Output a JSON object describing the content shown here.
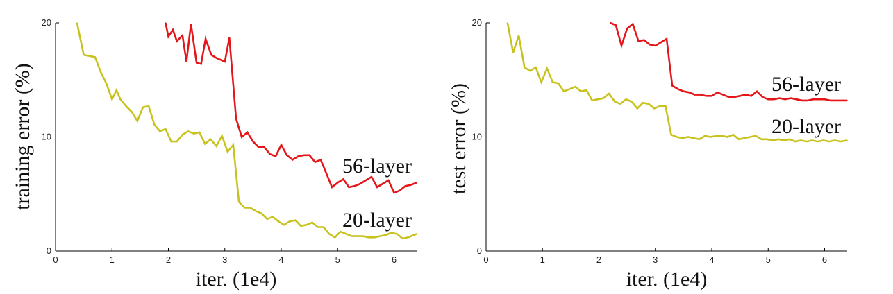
{
  "chart_data": [
    {
      "type": "line",
      "xlabel": "iter. (1e4)",
      "ylabel": "training error (%)",
      "xlim": [
        0,
        6.4
      ],
      "ylim": [
        0,
        20
      ],
      "xticks": [
        0,
        1,
        2,
        3,
        4,
        5,
        6
      ],
      "yticks": [
        0,
        10,
        20
      ],
      "grid": false,
      "series": [
        {
          "name": "56-layer",
          "color": "#e4161a",
          "x": [
            1.95,
            2.0,
            2.08,
            2.15,
            2.25,
            2.32,
            2.4,
            2.5,
            2.58,
            2.66,
            2.76,
            2.86,
            3.0,
            3.08,
            3.2,
            3.3,
            3.4,
            3.5,
            3.6,
            3.7,
            3.8,
            3.9,
            4.0,
            4.1,
            4.2,
            4.3,
            4.4,
            4.5,
            4.6,
            4.7,
            4.8,
            4.9,
            5.0,
            5.1,
            5.2,
            5.3,
            5.4,
            5.5,
            5.6,
            5.7,
            5.8,
            5.9,
            6.0,
            6.1,
            6.2,
            6.3,
            6.4
          ],
          "values": [
            20.0,
            18.8,
            19.4,
            18.4,
            18.9,
            16.6,
            19.9,
            16.5,
            16.4,
            18.6,
            17.2,
            16.9,
            16.6,
            18.7,
            11.6,
            10.0,
            10.4,
            9.6,
            9.1,
            9.1,
            8.5,
            8.3,
            9.3,
            8.4,
            8.0,
            8.3,
            8.4,
            8.4,
            7.8,
            8.0,
            6.8,
            5.6,
            6.0,
            6.3,
            5.6,
            5.7,
            5.9,
            6.2,
            6.5,
            5.6,
            5.9,
            6.2,
            5.1,
            5.3,
            5.7,
            5.8,
            6.0
          ]
        },
        {
          "name": "20-layer",
          "color": "#c8c21e",
          "x": [
            0.38,
            0.5,
            0.6,
            0.7,
            0.8,
            0.9,
            1.0,
            1.08,
            1.15,
            1.25,
            1.35,
            1.45,
            1.55,
            1.65,
            1.75,
            1.85,
            1.95,
            2.05,
            2.15,
            2.25,
            2.35,
            2.45,
            2.55,
            2.65,
            2.75,
            2.85,
            2.95,
            3.05,
            3.15,
            3.25,
            3.35,
            3.45,
            3.55,
            3.65,
            3.75,
            3.85,
            3.95,
            4.05,
            4.15,
            4.25,
            4.35,
            4.45,
            4.55,
            4.65,
            4.75,
            4.85,
            4.95,
            5.05,
            5.15,
            5.25,
            5.35,
            5.45,
            5.55,
            5.65,
            5.75,
            5.85,
            5.95,
            6.05,
            6.15,
            6.25,
            6.35,
            6.4
          ],
          "values": [
            20.0,
            17.2,
            17.1,
            17.0,
            15.7,
            14.7,
            13.3,
            14.1,
            13.3,
            12.7,
            12.2,
            11.4,
            12.6,
            12.7,
            11.1,
            10.5,
            10.7,
            9.6,
            9.6,
            10.2,
            10.5,
            10.3,
            10.4,
            9.4,
            9.8,
            9.2,
            10.1,
            8.7,
            9.3,
            4.3,
            3.8,
            3.8,
            3.5,
            3.3,
            2.8,
            3.0,
            2.6,
            2.3,
            2.6,
            2.7,
            2.2,
            2.3,
            2.5,
            2.1,
            2.1,
            1.5,
            1.2,
            1.7,
            1.5,
            1.3,
            1.3,
            1.3,
            1.2,
            1.2,
            1.3,
            1.4,
            1.6,
            1.5,
            1.1,
            1.2,
            1.4,
            1.5
          ]
        }
      ]
    },
    {
      "type": "line",
      "xlabel": "iter. (1e4)",
      "ylabel": "test error (%)",
      "xlim": [
        0,
        6.4
      ],
      "ylim": [
        0,
        20
      ],
      "xticks": [
        0,
        1,
        2,
        3,
        4,
        5,
        6
      ],
      "yticks": [
        0,
        10,
        20
      ],
      "grid": false,
      "series": [
        {
          "name": "56-layer",
          "color": "#e4161a",
          "x": [
            2.2,
            2.3,
            2.4,
            2.5,
            2.6,
            2.7,
            2.8,
            2.9,
            3.0,
            3.1,
            3.2,
            3.3,
            3.4,
            3.5,
            3.6,
            3.7,
            3.8,
            3.9,
            4.0,
            4.1,
            4.2,
            4.3,
            4.4,
            4.5,
            4.6,
            4.7,
            4.8,
            4.9,
            5.0,
            5.1,
            5.2,
            5.3,
            5.4,
            5.5,
            5.6,
            5.7,
            5.8,
            5.9,
            6.0,
            6.1,
            6.2,
            6.3,
            6.4
          ],
          "values": [
            20.0,
            19.8,
            18.0,
            19.5,
            19.9,
            18.4,
            18.5,
            18.1,
            18.0,
            18.3,
            18.6,
            14.5,
            14.2,
            14.0,
            13.9,
            13.7,
            13.7,
            13.6,
            13.6,
            13.9,
            13.7,
            13.5,
            13.5,
            13.6,
            13.7,
            13.6,
            14.0,
            13.5,
            13.3,
            13.3,
            13.4,
            13.3,
            13.4,
            13.3,
            13.2,
            13.2,
            13.3,
            13.3,
            13.3,
            13.2,
            13.2,
            13.2,
            13.2
          ]
        },
        {
          "name": "20-layer",
          "color": "#c8c21e",
          "x": [
            0.38,
            0.48,
            0.58,
            0.68,
            0.78,
            0.88,
            0.98,
            1.08,
            1.18,
            1.28,
            1.38,
            1.48,
            1.58,
            1.68,
            1.78,
            1.88,
            1.98,
            2.08,
            2.18,
            2.28,
            2.38,
            2.48,
            2.58,
            2.68,
            2.78,
            2.88,
            2.98,
            3.08,
            3.18,
            3.28,
            3.38,
            3.48,
            3.58,
            3.68,
            3.78,
            3.88,
            3.98,
            4.08,
            4.18,
            4.28,
            4.38,
            4.48,
            4.58,
            4.68,
            4.78,
            4.88,
            4.98,
            5.08,
            5.18,
            5.28,
            5.38,
            5.48,
            5.58,
            5.68,
            5.78,
            5.88,
            5.98,
            6.08,
            6.18,
            6.28,
            6.4
          ],
          "values": [
            20.0,
            17.4,
            18.9,
            16.1,
            15.8,
            16.1,
            14.8,
            16.0,
            14.8,
            14.7,
            14.0,
            14.2,
            14.4,
            14.0,
            14.1,
            13.2,
            13.3,
            13.4,
            13.8,
            13.1,
            12.9,
            13.3,
            13.1,
            12.5,
            13.0,
            12.9,
            12.5,
            12.7,
            12.7,
            10.2,
            10.0,
            9.9,
            10.0,
            9.9,
            9.8,
            10.1,
            10.0,
            10.1,
            10.1,
            10.0,
            10.2,
            9.8,
            9.9,
            10.0,
            10.1,
            9.8,
            9.8,
            9.7,
            9.8,
            9.7,
            9.8,
            9.6,
            9.7,
            9.6,
            9.7,
            9.6,
            9.7,
            9.6,
            9.7,
            9.6,
            9.7
          ]
        }
      ]
    }
  ]
}
